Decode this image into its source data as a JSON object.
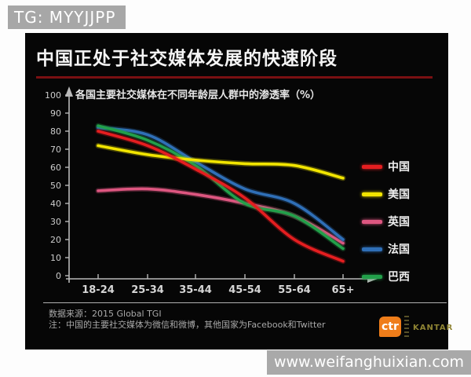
{
  "badge": {
    "text": "TG: MYYJJPP"
  },
  "slide": {
    "title": "中国正处于社交媒体发展的快速阶段",
    "accent_underline_color": "#7a1012",
    "background_color": "#060606"
  },
  "chart_data": {
    "type": "line",
    "title": "各国主要社交媒体在不同年龄层人群中的渗透率（%）",
    "categories": [
      "18-24",
      "25-34",
      "35-44",
      "45-54",
      "55-64",
      "65+"
    ],
    "series": [
      {
        "name": "中国",
        "color": "#e41e20",
        "values": [
          80,
          72,
          59,
          43,
          20,
          8
        ]
      },
      {
        "name": "美国",
        "color": "#f2e500",
        "values": [
          72,
          67,
          64,
          62,
          61,
          54
        ]
      },
      {
        "name": "英国",
        "color": "#dd5680",
        "values": [
          47,
          48,
          45,
          40,
          33,
          18
        ]
      },
      {
        "name": "法国",
        "color": "#2f6fb7",
        "values": [
          82,
          78,
          63,
          48,
          40,
          20
        ]
      },
      {
        "name": "巴西",
        "color": "#22a04a",
        "values": [
          83,
          75,
          61,
          40,
          33,
          15
        ]
      }
    ],
    "xlabel": "",
    "ylabel": "",
    "ylim": [
      0,
      100
    ],
    "ytick_step": 10,
    "grid": false,
    "legend_position": "right",
    "axis_color": "#b9b9b9"
  },
  "footer": {
    "source_line": "数据来源：2015 Global TGI",
    "note_line": "注：中国的主要社交媒体为微信和微博，其他国家为Facebook和Twitter",
    "logo_text": "ctr",
    "brand": "KANTAR"
  },
  "watermark": {
    "text": "www.weifanghuixian.com"
  }
}
